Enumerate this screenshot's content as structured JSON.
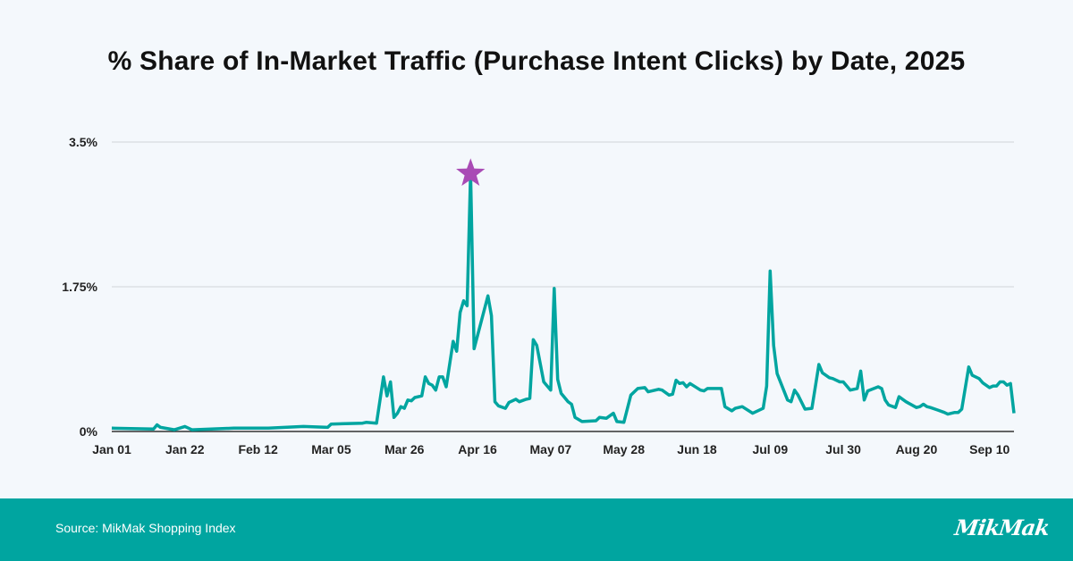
{
  "title": "% Share of In-Market Traffic (Purchase Intent Clicks) by Date, 2025",
  "footer": {
    "source": "Source: MikMak Shopping Index",
    "logo": "MikMak",
    "background": "#00a5a0"
  },
  "chart_data": {
    "type": "line",
    "title": "% Share of In-Market Traffic (Purchase Intent Clicks) by Date, 2025",
    "xlabel": "",
    "ylabel": "",
    "year": 2025,
    "xlim": [
      "2025-01-01",
      "2025-09-17"
    ],
    "ylim": [
      0,
      3.5
    ],
    "grid": true,
    "line_color": "#00a5a0",
    "peak_marker": {
      "shape": "star",
      "color": "#a94bb5",
      "date": "2025-04-14"
    },
    "y_ticks": [
      {
        "value": 0,
        "label": "0%"
      },
      {
        "value": 1.75,
        "label": "1.75%"
      },
      {
        "value": 3.5,
        "label": "3.5%"
      }
    ],
    "x_ticks": [
      {
        "date": "2025-01-01",
        "label": "Jan 01"
      },
      {
        "date": "2025-01-22",
        "label": "Jan 22"
      },
      {
        "date": "2025-02-12",
        "label": "Feb 12"
      },
      {
        "date": "2025-03-05",
        "label": "Mar 05"
      },
      {
        "date": "2025-03-26",
        "label": "Mar 26"
      },
      {
        "date": "2025-04-16",
        "label": "Apr 16"
      },
      {
        "date": "2025-05-07",
        "label": "May 07"
      },
      {
        "date": "2025-05-28",
        "label": "May 28"
      },
      {
        "date": "2025-06-18",
        "label": "Jun 18"
      },
      {
        "date": "2025-07-09",
        "label": "Jul 09"
      },
      {
        "date": "2025-07-30",
        "label": "Jul 30"
      },
      {
        "date": "2025-08-20",
        "label": "Aug 20"
      },
      {
        "date": "2025-09-10",
        "label": "Sep 10"
      }
    ],
    "series": [
      {
        "points": [
          [
            "2025-01-01",
            0.04
          ],
          [
            "2025-01-13",
            0.03
          ],
          [
            "2025-01-14",
            0.08
          ],
          [
            "2025-01-15",
            0.05
          ],
          [
            "2025-01-19",
            0.02
          ],
          [
            "2025-01-22",
            0.06
          ],
          [
            "2025-01-24",
            0.02
          ],
          [
            "2025-02-05",
            0.04
          ],
          [
            "2025-02-15",
            0.04
          ],
          [
            "2025-02-25",
            0.06
          ],
          [
            "2025-03-04",
            0.05
          ],
          [
            "2025-03-05",
            0.09
          ],
          [
            "2025-03-14",
            0.1
          ],
          [
            "2025-03-15",
            0.11
          ],
          [
            "2025-03-18",
            0.1
          ],
          [
            "2025-03-20",
            0.66
          ],
          [
            "2025-03-21",
            0.43
          ],
          [
            "2025-03-22",
            0.6
          ],
          [
            "2025-03-23",
            0.17
          ],
          [
            "2025-03-24",
            0.22
          ],
          [
            "2025-03-25",
            0.3
          ],
          [
            "2025-03-26",
            0.28
          ],
          [
            "2025-03-27",
            0.38
          ],
          [
            "2025-03-28",
            0.37
          ],
          [
            "2025-03-29",
            0.41
          ],
          [
            "2025-03-31",
            0.43
          ],
          [
            "2025-04-01",
            0.66
          ],
          [
            "2025-04-02",
            0.58
          ],
          [
            "2025-04-03",
            0.56
          ],
          [
            "2025-04-04",
            0.5
          ],
          [
            "2025-04-05",
            0.66
          ],
          [
            "2025-04-06",
            0.66
          ],
          [
            "2025-04-07",
            0.54
          ],
          [
            "2025-04-09",
            1.09
          ],
          [
            "2025-04-10",
            0.97
          ],
          [
            "2025-04-11",
            1.44
          ],
          [
            "2025-04-12",
            1.58
          ],
          [
            "2025-04-13",
            1.52
          ],
          [
            "2025-04-14",
            3.13
          ],
          [
            "2025-04-15",
            1.0
          ],
          [
            "2025-04-19",
            1.64
          ],
          [
            "2025-04-20",
            1.4
          ],
          [
            "2025-04-21",
            0.36
          ],
          [
            "2025-04-22",
            0.31
          ],
          [
            "2025-04-24",
            0.28
          ],
          [
            "2025-04-25",
            0.35
          ],
          [
            "2025-04-27",
            0.39
          ],
          [
            "2025-04-28",
            0.36
          ],
          [
            "2025-04-30",
            0.39
          ],
          [
            "2025-05-01",
            0.4
          ],
          [
            "2025-05-02",
            1.11
          ],
          [
            "2025-05-03",
            1.04
          ],
          [
            "2025-05-05",
            0.6
          ],
          [
            "2025-05-07",
            0.5
          ],
          [
            "2025-05-08",
            1.73
          ],
          [
            "2025-05-09",
            0.63
          ],
          [
            "2025-05-10",
            0.46
          ],
          [
            "2025-05-12",
            0.36
          ],
          [
            "2025-05-13",
            0.33
          ],
          [
            "2025-05-14",
            0.17
          ],
          [
            "2025-05-16",
            0.12
          ],
          [
            "2025-05-20",
            0.13
          ],
          [
            "2025-05-21",
            0.17
          ],
          [
            "2025-05-23",
            0.16
          ],
          [
            "2025-05-25",
            0.22
          ],
          [
            "2025-05-26",
            0.12
          ],
          [
            "2025-05-28",
            0.11
          ],
          [
            "2025-05-30",
            0.44
          ],
          [
            "2025-06-01",
            0.52
          ],
          [
            "2025-06-03",
            0.53
          ],
          [
            "2025-06-04",
            0.48
          ],
          [
            "2025-06-07",
            0.51
          ],
          [
            "2025-06-08",
            0.5
          ],
          [
            "2025-06-10",
            0.44
          ],
          [
            "2025-06-11",
            0.45
          ],
          [
            "2025-06-12",
            0.62
          ],
          [
            "2025-06-13",
            0.58
          ],
          [
            "2025-06-14",
            0.59
          ],
          [
            "2025-06-15",
            0.54
          ],
          [
            "2025-06-16",
            0.58
          ],
          [
            "2025-06-19",
            0.5
          ],
          [
            "2025-06-20",
            0.49
          ],
          [
            "2025-06-21",
            0.52
          ],
          [
            "2025-06-24",
            0.52
          ],
          [
            "2025-06-25",
            0.52
          ],
          [
            "2025-06-26",
            0.3
          ],
          [
            "2025-06-28",
            0.25
          ],
          [
            "2025-06-29",
            0.28
          ],
          [
            "2025-07-01",
            0.3
          ],
          [
            "2025-07-04",
            0.22
          ],
          [
            "2025-07-07",
            0.28
          ],
          [
            "2025-07-08",
            0.55
          ],
          [
            "2025-07-09",
            1.94
          ],
          [
            "2025-07-10",
            1.04
          ],
          [
            "2025-07-11",
            0.7
          ],
          [
            "2025-07-14",
            0.38
          ],
          [
            "2025-07-15",
            0.36
          ],
          [
            "2025-07-16",
            0.5
          ],
          [
            "2025-07-17",
            0.44
          ],
          [
            "2025-07-19",
            0.27
          ],
          [
            "2025-07-21",
            0.28
          ],
          [
            "2025-07-23",
            0.81
          ],
          [
            "2025-07-24",
            0.71
          ],
          [
            "2025-07-26",
            0.65
          ],
          [
            "2025-07-27",
            0.64
          ],
          [
            "2025-07-29",
            0.6
          ],
          [
            "2025-07-30",
            0.6
          ],
          [
            "2025-08-01",
            0.5
          ],
          [
            "2025-08-03",
            0.52
          ],
          [
            "2025-08-04",
            0.73
          ],
          [
            "2025-08-05",
            0.38
          ],
          [
            "2025-08-06",
            0.49
          ],
          [
            "2025-08-09",
            0.54
          ],
          [
            "2025-08-10",
            0.52
          ],
          [
            "2025-08-11",
            0.38
          ],
          [
            "2025-08-12",
            0.32
          ],
          [
            "2025-08-14",
            0.29
          ],
          [
            "2025-08-15",
            0.42
          ],
          [
            "2025-08-17",
            0.36
          ],
          [
            "2025-08-20",
            0.29
          ],
          [
            "2025-08-21",
            0.3
          ],
          [
            "2025-08-22",
            0.33
          ],
          [
            "2025-08-23",
            0.3
          ],
          [
            "2025-08-24",
            0.29
          ],
          [
            "2025-08-26",
            0.26
          ],
          [
            "2025-08-28",
            0.23
          ],
          [
            "2025-08-29",
            0.21
          ],
          [
            "2025-08-31",
            0.23
          ],
          [
            "2025-09-01",
            0.23
          ],
          [
            "2025-09-02",
            0.27
          ],
          [
            "2025-09-04",
            0.78
          ],
          [
            "2025-09-05",
            0.68
          ],
          [
            "2025-09-07",
            0.64
          ],
          [
            "2025-09-08",
            0.59
          ],
          [
            "2025-09-09",
            0.56
          ],
          [
            "2025-09-10",
            0.53
          ],
          [
            "2025-09-11",
            0.55
          ],
          [
            "2025-09-12",
            0.55
          ],
          [
            "2025-09-13",
            0.6
          ],
          [
            "2025-09-14",
            0.6
          ],
          [
            "2025-09-15",
            0.56
          ],
          [
            "2025-09-16",
            0.58
          ],
          [
            "2025-09-17",
            0.22
          ]
        ]
      }
    ]
  }
}
